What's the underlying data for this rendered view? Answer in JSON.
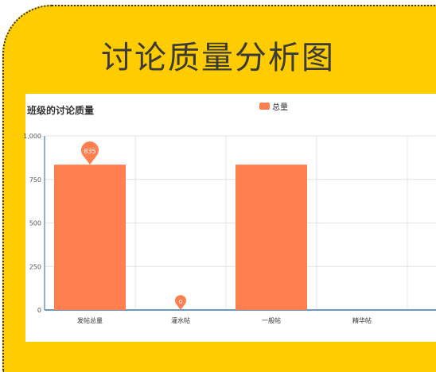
{
  "page": {
    "heading": "讨论质量分析图"
  },
  "chart_data": {
    "type": "bar",
    "title": "班级的讨论质量",
    "legend": [
      "总量"
    ],
    "categories": [
      "发帖总量",
      "灌水帖",
      "一般帖",
      "精华帖"
    ],
    "series": [
      {
        "name": "总量",
        "values": [
          835,
          0,
          835,
          0
        ],
        "color": "#ff7f50"
      }
    ],
    "ylim": [
      0,
      1000
    ],
    "yticks": [
      "0",
      "250",
      "500",
      "750",
      "1,000"
    ],
    "markers": [
      {
        "category_index": 0,
        "label": "835"
      },
      {
        "category_index": 1,
        "label": "0"
      }
    ],
    "grid": true,
    "legend_position": "top"
  }
}
